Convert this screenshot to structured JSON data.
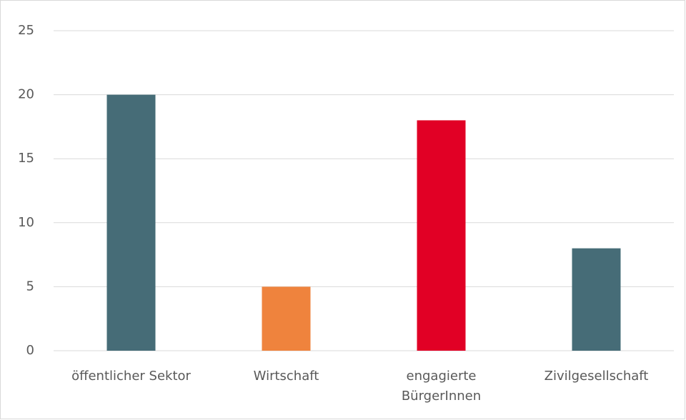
{
  "chart_data": {
    "type": "bar",
    "categories": [
      "öffentlicher Sektor",
      "Wirtschaft",
      "engagierte BürgerInnen",
      "Zivilgesellschaft"
    ],
    "values": [
      20,
      5,
      18,
      8
    ],
    "colors": [
      "#466c77",
      "#ef833d",
      "#e10025",
      "#466c77"
    ],
    "ylim": [
      0,
      25
    ],
    "yticks": [
      0,
      5,
      10,
      15,
      20,
      25
    ],
    "grid": true
  }
}
